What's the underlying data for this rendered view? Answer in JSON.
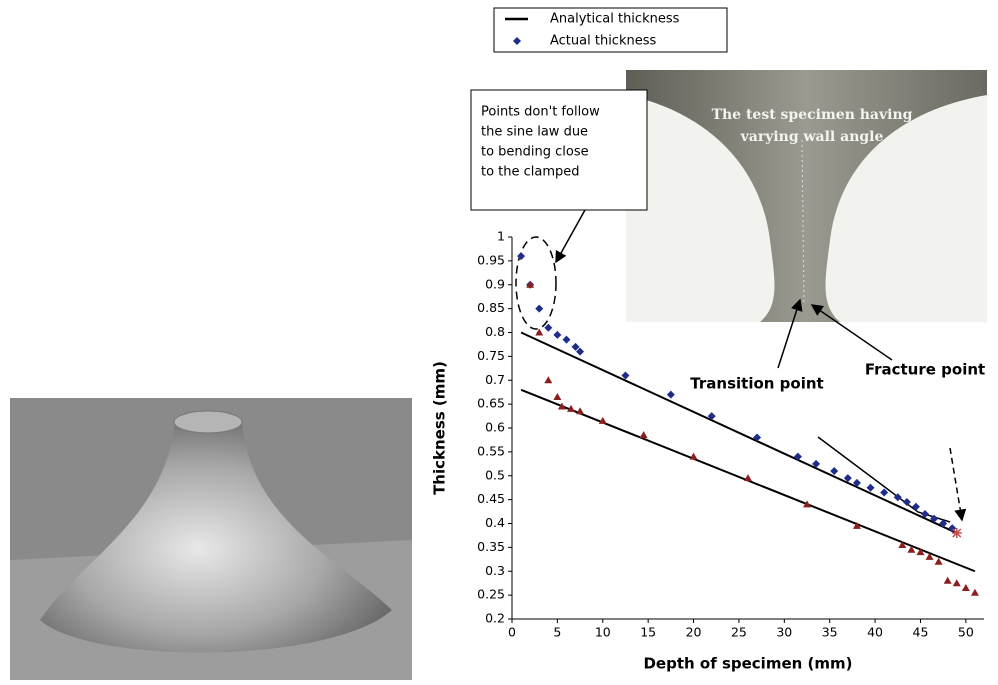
{
  "chart_data": {
    "type": "scatter",
    "y_label": "Thickness (mm)",
    "x_label": "Depth of specimen (mm)",
    "xlim": [
      0,
      52
    ],
    "ylim": [
      0.2,
      1
    ],
    "xticks": [
      0,
      5,
      10,
      15,
      20,
      25,
      30,
      35,
      40,
      45,
      50
    ],
    "yticks": [
      0.2,
      0.25,
      0.3,
      0.35,
      0.4,
      0.45,
      0.5,
      0.55,
      0.6,
      0.65,
      0.7,
      0.75,
      0.8,
      0.85,
      0.9,
      0.95,
      1
    ],
    "series": [
      {
        "name": "Analytical thickness",
        "marker": "line",
        "color": "#000000",
        "x": [
          1,
          49,
          null,
          1,
          51
        ],
        "values": [
          0.8,
          0.38,
          null,
          0.68,
          0.3
        ]
      },
      {
        "name": "Actual thickness",
        "marker": "diamond",
        "color": "#1f2d8a",
        "x": [
          1,
          2,
          3,
          4,
          5,
          6,
          7,
          7.5,
          12.5,
          17.5,
          22,
          27,
          31.5,
          33.5,
          35.5,
          37,
          38,
          39.5,
          41,
          42.5,
          43.5,
          44.5,
          45.5,
          46.5,
          47.5,
          48.5
        ],
        "values": [
          0.96,
          0.9,
          0.85,
          0.81,
          0.795,
          0.785,
          0.77,
          0.76,
          0.71,
          0.67,
          0.625,
          0.58,
          0.54,
          0.525,
          0.51,
          0.495,
          0.485,
          0.475,
          0.465,
          0.455,
          0.445,
          0.435,
          0.42,
          0.41,
          0.4,
          0.39
        ]
      },
      {
        "marker": "triangle",
        "color": "#8b1f1f",
        "x": [
          2,
          3,
          4,
          5,
          5.5,
          6.5,
          7.5,
          10,
          14.5,
          20,
          26,
          32.5,
          38,
          43,
          44,
          45,
          46,
          47,
          48,
          49,
          50,
          51
        ],
        "values": [
          0.9,
          0.8,
          0.7,
          0.665,
          0.645,
          0.64,
          0.635,
          0.615,
          0.585,
          0.54,
          0.495,
          0.44,
          0.395,
          0.355,
          0.345,
          0.34,
          0.33,
          0.32,
          0.28,
          0.275,
          0.265,
          0.255
        ]
      },
      {
        "marker": "star",
        "color": "#c0504d",
        "x": [
          49
        ],
        "values": [
          0.38
        ]
      }
    ],
    "annotations": [
      {
        "lines": [
          "Points don't follow",
          "the sine law due",
          "to bending close",
          "to the clamped"
        ]
      },
      {
        "lines": [
          "The test  specimen having",
          "varying wall angle"
        ]
      },
      {
        "lines": [
          "Transition point"
        ]
      },
      {
        "lines": [
          "Fracture point"
        ]
      }
    ]
  }
}
